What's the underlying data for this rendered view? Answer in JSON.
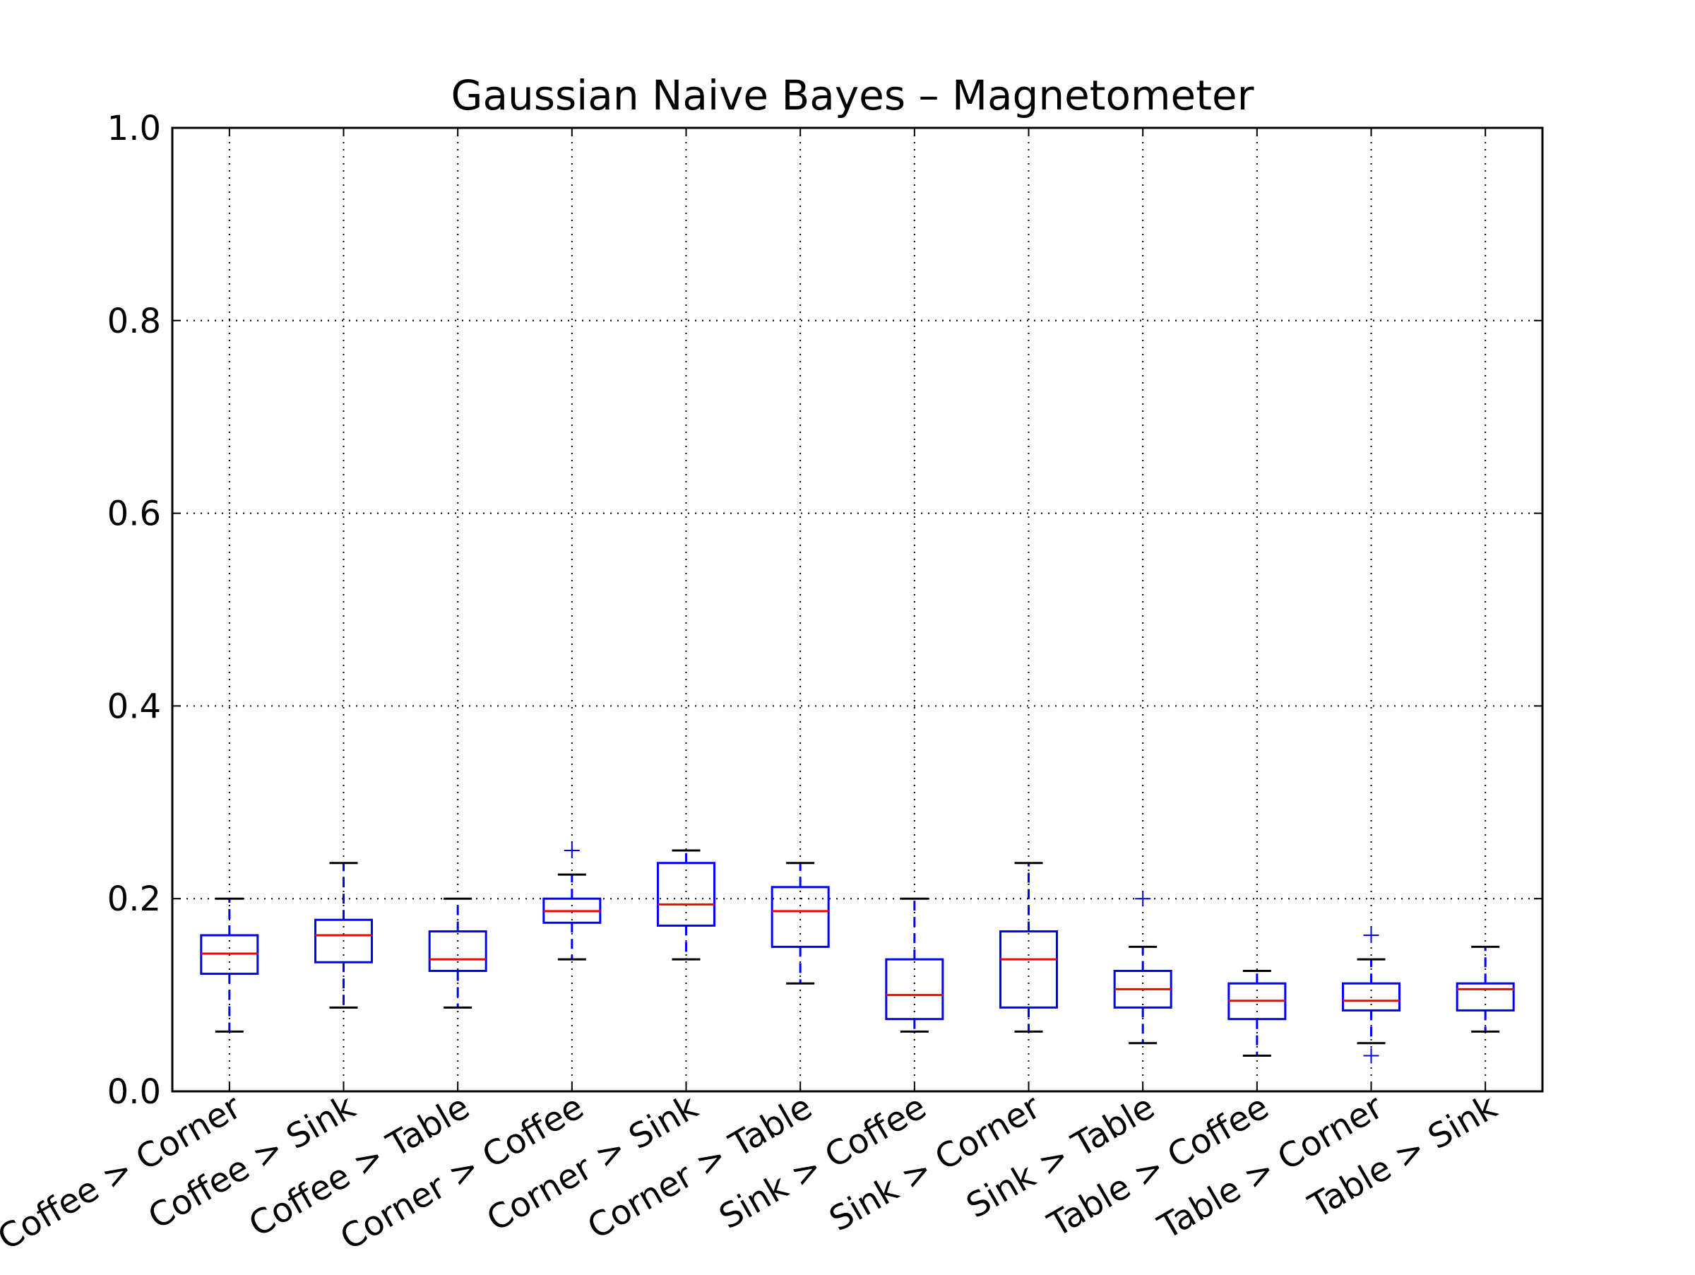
{
  "chart_data": {
    "type": "box",
    "title": "Gaussian Naive Bayes – Magnetometer",
    "xlabel": "",
    "ylabel": "",
    "ylim": [
      0.0,
      1.0
    ],
    "yticks": [
      "0.0",
      "0.2",
      "0.4",
      "0.6",
      "0.8",
      "1.0"
    ],
    "grid": true,
    "categories": [
      "Coffee > Corner",
      "Coffee > Sink",
      "Coffee > Table",
      "Corner > Coffee",
      "Corner > Sink",
      "Corner > Table",
      "Sink > Coffee",
      "Sink > Corner",
      "Sink > Table",
      "Table > Coffee",
      "Table > Corner",
      "Table > Sink"
    ],
    "boxes": [
      {
        "whisker_low": 0.062,
        "q1": 0.122,
        "median": 0.143,
        "q3": 0.162,
        "whisker_high": 0.2,
        "outliers": []
      },
      {
        "whisker_low": 0.087,
        "q1": 0.134,
        "median": 0.162,
        "q3": 0.178,
        "whisker_high": 0.237,
        "outliers": []
      },
      {
        "whisker_low": 0.087,
        "q1": 0.125,
        "median": 0.137,
        "q3": 0.166,
        "whisker_high": 0.2,
        "outliers": []
      },
      {
        "whisker_low": 0.137,
        "q1": 0.175,
        "median": 0.187,
        "q3": 0.2,
        "whisker_high": 0.225,
        "outliers": [
          0.25
        ]
      },
      {
        "whisker_low": 0.137,
        "q1": 0.172,
        "median": 0.194,
        "q3": 0.237,
        "whisker_high": 0.25,
        "outliers": []
      },
      {
        "whisker_low": 0.112,
        "q1": 0.15,
        "median": 0.187,
        "q3": 0.212,
        "whisker_high": 0.237,
        "outliers": []
      },
      {
        "whisker_low": 0.062,
        "q1": 0.075,
        "median": 0.1,
        "q3": 0.137,
        "whisker_high": 0.2,
        "outliers": []
      },
      {
        "whisker_low": 0.062,
        "q1": 0.087,
        "median": 0.137,
        "q3": 0.166,
        "whisker_high": 0.237,
        "outliers": []
      },
      {
        "whisker_low": 0.05,
        "q1": 0.087,
        "median": 0.106,
        "q3": 0.125,
        "whisker_high": 0.15,
        "outliers": [
          0.2
        ]
      },
      {
        "whisker_low": 0.037,
        "q1": 0.075,
        "median": 0.094,
        "q3": 0.112,
        "whisker_high": 0.125,
        "outliers": []
      },
      {
        "whisker_low": 0.05,
        "q1": 0.084,
        "median": 0.094,
        "q3": 0.112,
        "whisker_high": 0.137,
        "outliers": [
          0.162,
          0.037
        ]
      },
      {
        "whisker_low": 0.062,
        "q1": 0.084,
        "median": 0.106,
        "q3": 0.112,
        "whisker_high": 0.15,
        "outliers": []
      }
    ],
    "colors": {
      "box": "#0000ff",
      "median": "#ff0000",
      "outlier": "#0000ff",
      "whisker_cap": "#000000",
      "grid": "#000000"
    }
  }
}
